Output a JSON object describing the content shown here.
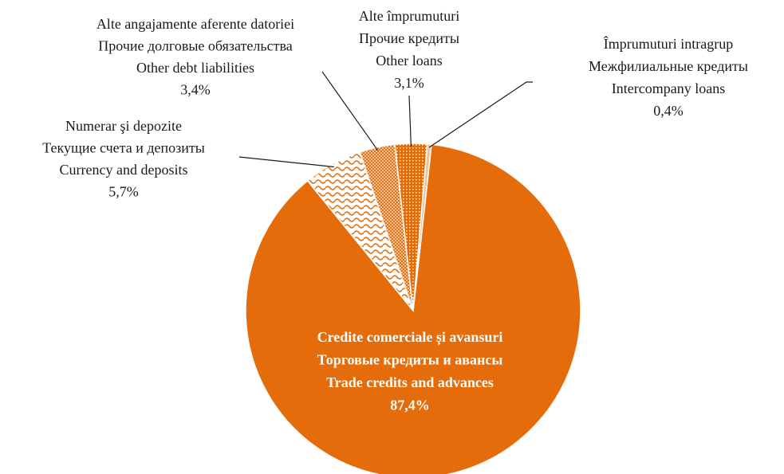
{
  "chart_data": {
    "type": "pie",
    "labels": [
      [
        "Credite comerciale și avansuri",
        "Торговые кредиты и авансы",
        "Trade credits and advances"
      ],
      [
        "Numerar şi depozite",
        "Текущие счета и депозиты",
        "Currency and deposits"
      ],
      [
        "Alte angajamente aferente datoriei",
        "Прочие долговые обязательства",
        "Other debt liabilities"
      ],
      [
        "Alte împrumuturi",
        "Прочие кредиты",
        "Other loans"
      ],
      [
        "Împrumuturi intragrup",
        "Межфилиальные кредиты",
        "Intercompany loans"
      ]
    ],
    "values": [
      87.4,
      5.7,
      3.4,
      3.1,
      0.4
    ],
    "value_labels": [
      "87,4%",
      "5,7%",
      "3,4%",
      "3,1%",
      "0,4%"
    ],
    "colors": [
      "#e46c0a",
      "#e46c0a",
      "#e46c0a",
      "#e46c0a",
      "#e46c0a"
    ]
  }
}
